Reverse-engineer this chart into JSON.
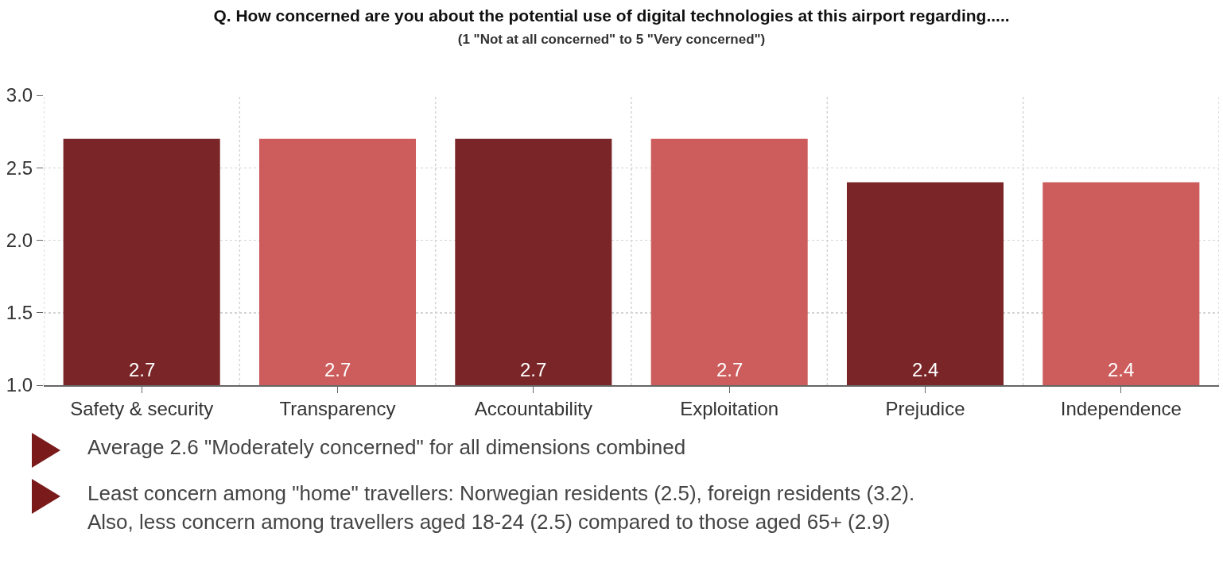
{
  "chart_data": {
    "type": "bar",
    "title": "Q. How concerned are you about the potential use of digital technologies at this airport regarding.....",
    "subtitle": "(1 \"Not at all concerned\" to 5 \"Very concerned\")",
    "categories": [
      "Safety & security",
      "Transparency",
      "Accountability",
      "Exploitation",
      "Prejudice",
      "Independence"
    ],
    "values": [
      2.7,
      2.7,
      2.7,
      2.7,
      2.4,
      2.4
    ],
    "colors": [
      "#7a2628",
      "#cd5c5c",
      "#7a2628",
      "#cd5c5c",
      "#7a2628",
      "#cd5c5c"
    ],
    "ylim": [
      1,
      3
    ],
    "yticks": [
      {
        "value": 1,
        "label": "1.0"
      },
      {
        "value": 1.5,
        "label": "1.5"
      },
      {
        "value": 2,
        "label": "2.0"
      },
      {
        "value": 2.5,
        "label": "2.5"
      },
      {
        "value": 3,
        "label": "3.0"
      }
    ],
    "grid": true,
    "data_labels": true,
    "annotations": [
      "Average 2.6 \"Moderately concerned\" for all dimensions combined",
      "Least concern among \"home\" travellers: Norwegian residents (2.5), foreign residents (3.2).\nAlso, less concern among travellers aged 18-24 (2.5) compared to those aged 65+ (2.9)"
    ]
  }
}
